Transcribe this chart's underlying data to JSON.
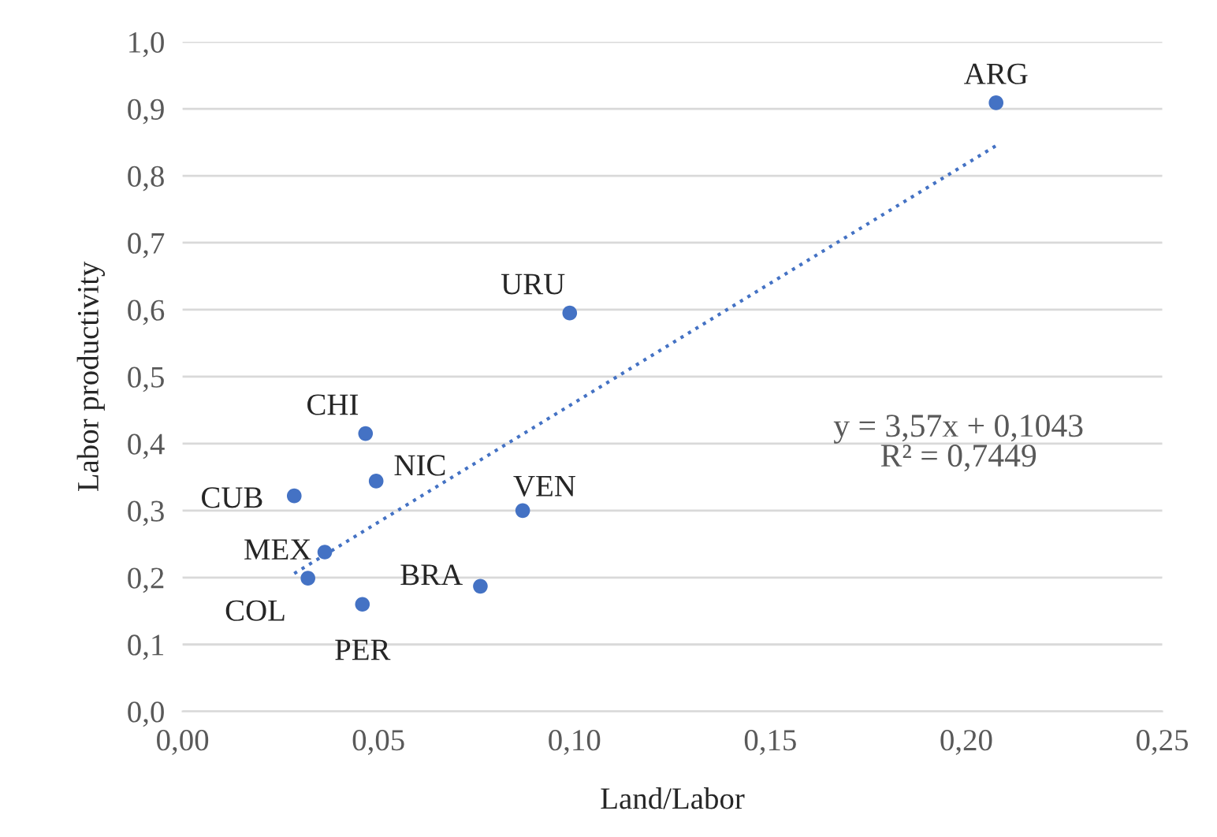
{
  "chart_data": {
    "type": "scatter",
    "xlabel": "Land/Labor",
    "ylabel": "Labor productivity",
    "series": [
      {
        "color": "#4472c4",
        "marker": "circle",
        "x": [
          0.2076,
          0.0988,
          0.0467,
          0.0494,
          0.0285,
          0.0868,
          0.0363,
          0.076,
          0.032,
          0.0459
        ],
        "values": [
          0.909,
          0.595,
          0.415,
          0.344,
          0.322,
          0.3,
          0.238,
          0.187,
          0.199,
          0.16
        ]
      },
      {
        "type": "line",
        "color": "#4472c4",
        "line_style": "dotted",
        "x": [
          0.0285,
          0.2076
        ],
        "values": [
          0.206,
          0.845
        ]
      }
    ],
    "annotations": [
      {
        "text": "ARG",
        "x": 0.2076,
        "y": 0.909
      },
      {
        "text": "URU",
        "x": 0.0988,
        "y": 0.595
      },
      {
        "text": "CHI",
        "x": 0.0467,
        "y": 0.415
      },
      {
        "text": "NIC",
        "x": 0.0494,
        "y": 0.344
      },
      {
        "text": "CUB",
        "x": 0.0285,
        "y": 0.322
      },
      {
        "text": "VEN",
        "x": 0.0868,
        "y": 0.3
      },
      {
        "text": "MEX",
        "x": 0.0363,
        "y": 0.238
      },
      {
        "text": "BRA",
        "x": 0.076,
        "y": 0.187
      },
      {
        "text": "COL",
        "x": 0.032,
        "y": 0.199
      },
      {
        "text": "PER",
        "x": 0.0459,
        "y": 0.16
      },
      "y = 3,57x + 0,1043\nR² = 0,7449"
    ],
    "xlim": [
      0,
      0.25
    ],
    "xticks": [
      {
        "value": 0,
        "label": "0,00"
      },
      {
        "value": 0.05,
        "label": "0,05"
      },
      {
        "value": 0.1,
        "label": "0,10"
      },
      {
        "value": 0.15,
        "label": "0,15"
      },
      {
        "value": 0.2,
        "label": "0,20"
      },
      {
        "value": 0.25,
        "label": "0,25"
      }
    ],
    "ylim": [
      0,
      1
    ],
    "yticks": [
      {
        "value": 0,
        "label": "0,0"
      },
      {
        "value": 0.1,
        "label": "0,1"
      },
      {
        "value": 0.2,
        "label": "0,2"
      },
      {
        "value": 0.3,
        "label": "0,3"
      },
      {
        "value": 0.4,
        "label": "0,4"
      },
      {
        "value": 0.5,
        "label": "0,5"
      },
      {
        "value": 0.6,
        "label": "0,6"
      },
      {
        "value": 0.7,
        "label": "0,7"
      },
      {
        "value": 0.8,
        "label": "0,8"
      },
      {
        "value": 0.9,
        "label": "0,9"
      },
      {
        "value": 1.0,
        "label": "1,0"
      }
    ],
    "grid": "y"
  }
}
